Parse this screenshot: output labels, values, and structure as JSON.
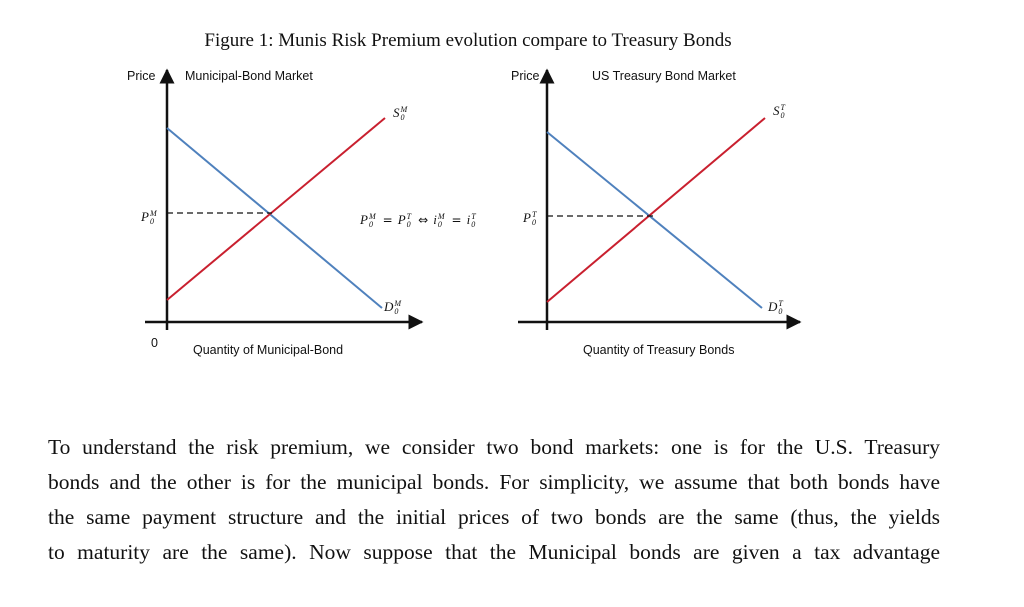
{
  "figure": {
    "caption": "Figure 1: Munis Risk Premium evolution compare to Treasury Bonds",
    "panels": [
      {
        "title": "Municipal-Bond Market",
        "y_axis": "Price",
        "x_axis": "Quantity of Municipal-Bond",
        "origin": "0",
        "price_label": {
          "base": "P",
          "sub": "0",
          "sup": "M"
        },
        "supply_label": {
          "base": "S",
          "sub": "0",
          "sup": "M"
        },
        "demand_label": {
          "base": "D",
          "sub": "0",
          "sup": "M"
        }
      },
      {
        "title": "US Treasury Bond Market",
        "y_axis": "Price",
        "x_axis": "Quantity of Treasury Bonds",
        "price_label": {
          "base": "P",
          "sub": "0",
          "sup": "T"
        },
        "supply_label": {
          "base": "S",
          "sub": "0",
          "sup": "T"
        },
        "demand_label": {
          "base": "D",
          "sub": "0",
          "sup": "T"
        }
      }
    ],
    "equation": [
      {
        "base": "P",
        "sub": "0",
        "sup": "M"
      },
      "=",
      {
        "base": "P",
        "sub": "0",
        "sup": "T"
      },
      "⇔",
      {
        "base": "i",
        "sub": "0",
        "sup": "M"
      },
      "=",
      {
        "base": "i",
        "sub": "0",
        "sup": "T"
      }
    ]
  },
  "paragraph": {
    "lines": [
      "To understand the risk premium, we consider two bond markets: one is for the U.S. Treasury",
      "bonds and the other is for the municipal bonds. For simplicity, we assume that both bonds have",
      "the same payment structure and the initial prices of two bonds are the same (thus, the yields",
      "to maturity are the same). Now suppose that the Municipal bonds are given a tax advantage"
    ]
  }
}
